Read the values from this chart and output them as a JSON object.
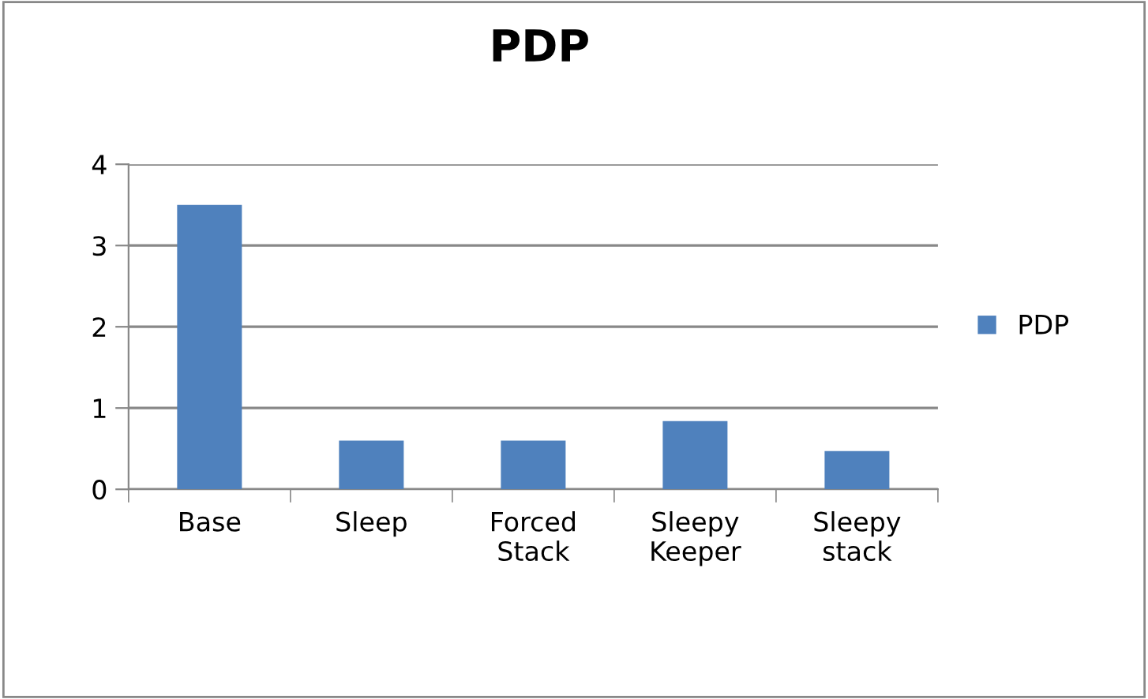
{
  "chart_data": {
    "type": "bar",
    "title": "PDP",
    "categories": [
      "Base",
      "Sleep",
      "Forced\nStack",
      "Sleepy\nKeeper",
      "Sleepy\nstack"
    ],
    "series": [
      {
        "name": "PDP",
        "color": "#4f81bd",
        "values": [
          3.5,
          0.6,
          0.6,
          0.84,
          0.47
        ]
      }
    ],
    "ylim": [
      0,
      4
    ],
    "yticks": [
      0,
      1,
      2,
      3,
      4
    ],
    "grid": "y",
    "legend": "right"
  }
}
